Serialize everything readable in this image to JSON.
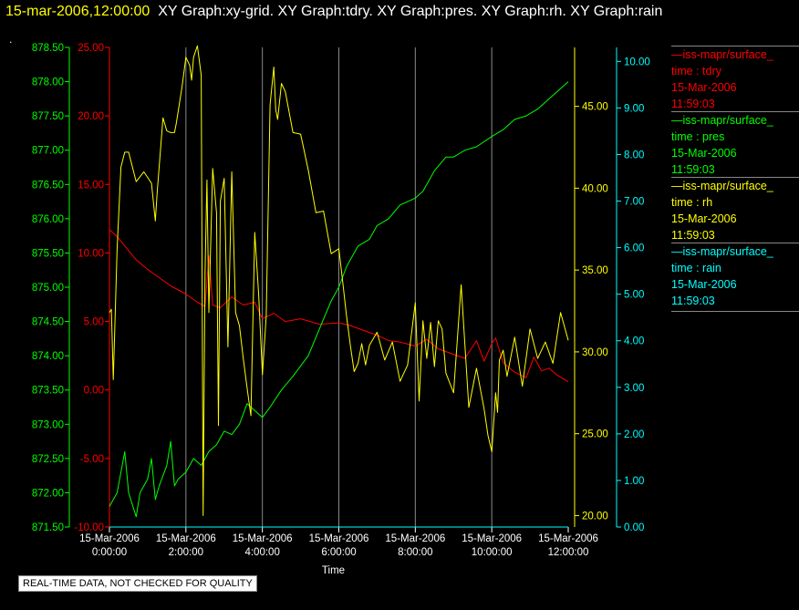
{
  "header": {
    "date_label": "15-mar-2006,12:00:00",
    "graphs_label": "XY Graph:xy-grid.  XY Graph:tdry.  XY Graph:pres.  XY Graph:rh.  XY Graph:rain",
    "dot": "."
  },
  "notice": "REAL-TIME DATA, NOT CHECKED FOR QUALITY",
  "legend": [
    {
      "source": "—iss-mapr/surface_",
      "field": "time : tdry",
      "date": "15-Mar-2006",
      "time": "11:59:03",
      "color": "#ff0000"
    },
    {
      "source": "—iss-mapr/surface_",
      "field": "time : pres",
      "date": "15-Mar-2006",
      "time": "11:59:03",
      "color": "#00ff00"
    },
    {
      "source": "—iss-mapr/surface_",
      "field": "time : rh",
      "date": "15-Mar-2006",
      "time": "11:59:03",
      "color": "#ffff00"
    },
    {
      "source": "—iss-mapr/surface_",
      "field": "time : rain",
      "date": "15-Mar-2006",
      "time": "11:59:03",
      "color": "#00ffff"
    }
  ],
  "chart_data": {
    "type": "line",
    "xlabel": "Time",
    "x_ticks": [
      {
        "value": 0,
        "date": "15-Mar-2006",
        "time": "0:00:00"
      },
      {
        "value": 2,
        "date": "15-Mar-2006",
        "time": "2:00:00"
      },
      {
        "value": 4,
        "date": "15-Mar-2006",
        "time": "4:00:00"
      },
      {
        "value": 6,
        "date": "15-Mar-2006",
        "time": "6:00:00"
      },
      {
        "value": 8,
        "date": "15-Mar-2006",
        "time": "8:00:00"
      },
      {
        "value": 10,
        "date": "15-Mar-2006",
        "time": "10:00:00"
      },
      {
        "value": 12,
        "date": "15-Mar-2006",
        "time": "12:00:00"
      }
    ],
    "xlim": [
      0,
      12
    ],
    "grid": "vertical",
    "axes": {
      "pres": {
        "color": "#00ff00",
        "ylim": [
          871.5,
          878.5
        ],
        "ticks": [
          "871.50",
          "872.00",
          "872.50",
          "873.00",
          "873.50",
          "874.00",
          "874.50",
          "875.00",
          "875.50",
          "876.00",
          "876.50",
          "877.00",
          "877.50",
          "878.00",
          "878.50"
        ]
      },
      "tdry": {
        "color": "#ff0000",
        "ylim": [
          -10,
          25
        ],
        "ticks": [
          "-10.00",
          "-5.00",
          "0.00",
          "5.00",
          "10.00",
          "15.00",
          "20.00",
          "25.00"
        ]
      },
      "rh": {
        "color": "#ffff00",
        "ylim": [
          19.3,
          48.6
        ],
        "ticks": [
          "20.00",
          "25.00",
          "30.00",
          "35.00",
          "40.00",
          "45.00"
        ]
      },
      "rain": {
        "color": "#00ffff",
        "ylim": [
          0,
          10.3
        ],
        "ticks": [
          "0.00",
          "1.00",
          "2.00",
          "3.00",
          "4.00",
          "5.00",
          "6.00",
          "7.00",
          "8.00",
          "9.00",
          "10.00"
        ]
      }
    },
    "series": [
      {
        "name": "time : tdry",
        "axis": "tdry",
        "color": "#ff0000",
        "x": [
          0,
          0.2,
          0.4,
          0.7,
          1,
          1.3,
          1.6,
          2,
          2.3,
          2.5,
          2.6,
          2.7,
          2.9,
          3.2,
          3.5,
          3.8,
          4,
          4.3,
          4.6,
          5,
          5.5,
          6,
          6.3,
          6.6,
          7,
          7.3,
          7.6,
          8,
          8.3,
          8.6,
          9,
          9.3,
          9.6,
          9.8,
          10,
          10.1,
          10.3,
          10.6,
          10.9,
          11.1,
          11.3,
          11.5,
          11.7,
          12
        ],
        "y": [
          11.7,
          11.2,
          10.5,
          9.5,
          8.8,
          8.2,
          7.6,
          7,
          6.4,
          6.1,
          9.8,
          6.2,
          6,
          6.8,
          6.2,
          6.4,
          5.2,
          5.6,
          5,
          5.2,
          4.8,
          4.9,
          4.7,
          4.4,
          4,
          3.6,
          3.5,
          3.2,
          3.7,
          3,
          2.6,
          2.3,
          3.6,
          2.1,
          3.4,
          3.8,
          2,
          1.3,
          0.9,
          2.4,
          1.4,
          1.6,
          1.1,
          0.6
        ]
      },
      {
        "name": "time : pres",
        "axis": "pres",
        "color": "#00ff00",
        "x": [
          0,
          0.2,
          0.4,
          0.5,
          0.7,
          0.8,
          1,
          1.1,
          1.2,
          1.3,
          1.5,
          1.6,
          1.7,
          1.8,
          2,
          2.2,
          2.4,
          2.6,
          2.8,
          3,
          3.2,
          3.4,
          3.6,
          3.8,
          4,
          4.2,
          4.5,
          4.8,
          5.2,
          5.5,
          5.8,
          6,
          6.2,
          6.5,
          6.8,
          7,
          7.3,
          7.6,
          8,
          8.2,
          8.5,
          8.8,
          9,
          9.3,
          9.6,
          10,
          10.3,
          10.6,
          10.9,
          11.2,
          11.5,
          11.8,
          12
        ],
        "y": [
          871.8,
          872.0,
          872.6,
          872.0,
          871.65,
          872.0,
          872.2,
          872.5,
          871.9,
          872.1,
          872.4,
          872.75,
          872.1,
          872.2,
          872.3,
          872.5,
          872.4,
          872.6,
          872.7,
          872.9,
          872.85,
          873.0,
          873.3,
          873.2,
          873.1,
          873.25,
          873.5,
          873.7,
          874.0,
          874.4,
          874.8,
          875.0,
          875.3,
          875.6,
          875.7,
          875.9,
          876.0,
          876.2,
          876.3,
          876.4,
          876.7,
          876.9,
          876.9,
          877.0,
          877.05,
          877.2,
          877.3,
          877.45,
          877.5,
          877.6,
          877.75,
          877.9,
          878.0
        ]
      },
      {
        "name": "time : rh",
        "axis": "rh",
        "color": "#ffff00",
        "x": [
          0,
          0.05,
          0.1,
          0.15,
          0.2,
          0.3,
          0.4,
          0.5,
          0.7,
          0.9,
          1.1,
          1.2,
          1.25,
          1.4,
          1.5,
          1.6,
          1.7,
          1.75,
          1.9,
          2,
          2.1,
          2.15,
          2.2,
          2.3,
          2.4,
          2.45,
          2.5,
          2.55,
          2.6,
          2.7,
          2.8,
          2.85,
          2.9,
          3,
          3.1,
          3.2,
          3.3,
          3.4,
          3.5,
          3.6,
          3.7,
          3.8,
          3.9,
          4,
          4.1,
          4.2,
          4.3,
          4.35,
          4.4,
          4.5,
          4.6,
          4.8,
          5,
          5.2,
          5.4,
          5.6,
          5.8,
          6,
          6.1,
          6.2,
          6.3,
          6.4,
          6.5,
          6.6,
          6.7,
          6.8,
          7,
          7.2,
          7.4,
          7.6,
          7.8,
          8,
          8.1,
          8.2,
          8.3,
          8.4,
          8.5,
          8.6,
          8.7,
          8.8,
          9,
          9.2,
          9.4,
          9.6,
          9.8,
          9.9,
          10,
          10.1,
          10.15,
          10.2,
          10.3,
          10.4,
          10.6,
          10.8,
          11,
          11.2,
          11.4,
          11.6,
          11.8,
          12
        ],
        "y": [
          32.4,
          32.6,
          28.3,
          32.3,
          36.3,
          41.3,
          42.2,
          42.2,
          40.4,
          41,
          40.3,
          38,
          39.8,
          44.3,
          43.5,
          43.4,
          43.4,
          44,
          46.2,
          48,
          47.5,
          46.6,
          48,
          48.7,
          46.9,
          20.0,
          34.8,
          40.5,
          32.4,
          41.2,
          38.5,
          25.5,
          39.2,
          40.6,
          30.3,
          41.0,
          32.4,
          31.6,
          29.6,
          27.8,
          26.1,
          37.3,
          33.6,
          28.6,
          32.2,
          45.1,
          47.4,
          44.8,
          44.2,
          46.4,
          45.9,
          43.4,
          43.3,
          41.1,
          38.5,
          38.6,
          36.0,
          36.3,
          34.3,
          32.2,
          30.4,
          28.8,
          29.3,
          30.5,
          29.2,
          30.4,
          31.2,
          29.5,
          30.6,
          28.2,
          29.2,
          33.0,
          27.0,
          31.9,
          29.6,
          31.8,
          29.1,
          31.9,
          31.4,
          28.7,
          27.5,
          34.1,
          26.6,
          29.0,
          26.5,
          24.9,
          23.9,
          27.5,
          26.3,
          29.5,
          30.1,
          28.5,
          30.9,
          27.9,
          31.4,
          29.6,
          30.6,
          29.3,
          32.4,
          30.7
        ]
      },
      {
        "name": "time : rain",
        "axis": "rain",
        "color": "#00ffff",
        "x": [
          0,
          12
        ],
        "y": [
          0,
          0
        ]
      }
    ]
  }
}
